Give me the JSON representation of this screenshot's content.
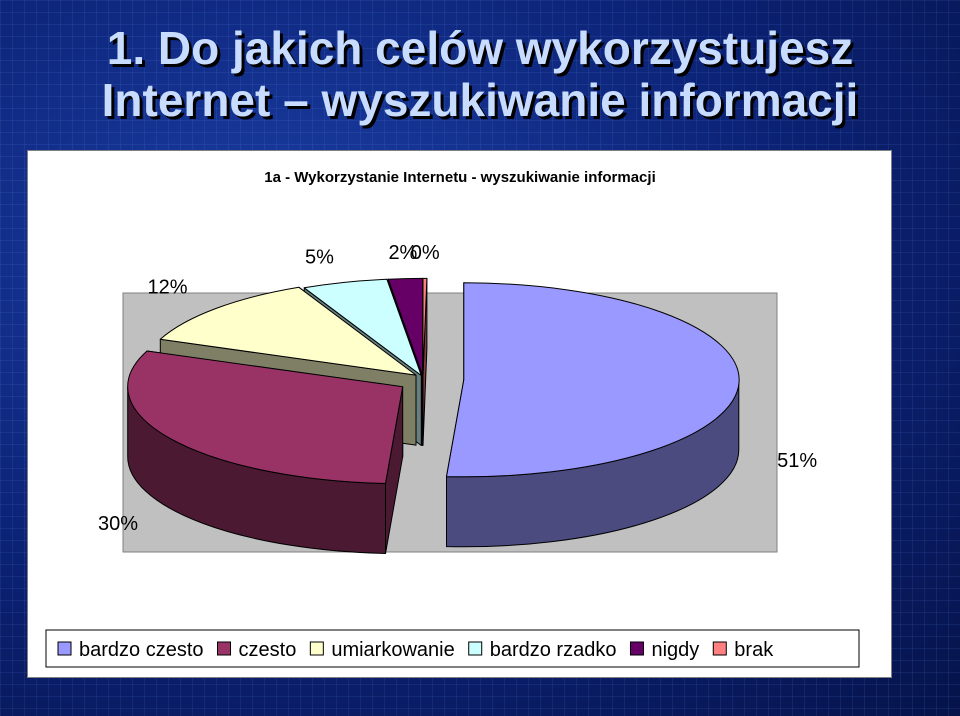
{
  "slide": {
    "title_line1": "1. Do jakich celów wykorzystujesz",
    "title_line2": "Internet – wyszukiwanie informacji"
  },
  "colors": {
    "background": "#0a1f6e",
    "title_text": "#c8dcff"
  },
  "chart_data": {
    "type": "pie",
    "style": "3d-exploded",
    "title": "1a - Wykorzystanie Internetu - wyszukiwanie informacji",
    "categories": [
      "bardzo czesto",
      "czesto",
      "umiarkowanie",
      "bardzo rzadko",
      "nigdy",
      "brak"
    ],
    "values": [
      51,
      30,
      12,
      5,
      2,
      0
    ],
    "data_labels": [
      "51%",
      "30%",
      "12%",
      "5%",
      "2%",
      "0%"
    ],
    "colors": [
      "#9999ff",
      "#993366",
      "#ffffcc",
      "#ccffff",
      "#660066",
      "#ff8080"
    ],
    "side_colors": [
      "#4b4b7f",
      "#4b1a32",
      "#7f7f66",
      "#667f7f",
      "#330033",
      "#7f4040"
    ],
    "legend_position": "bottom",
    "plot_area_color": "#c0c0c0"
  }
}
